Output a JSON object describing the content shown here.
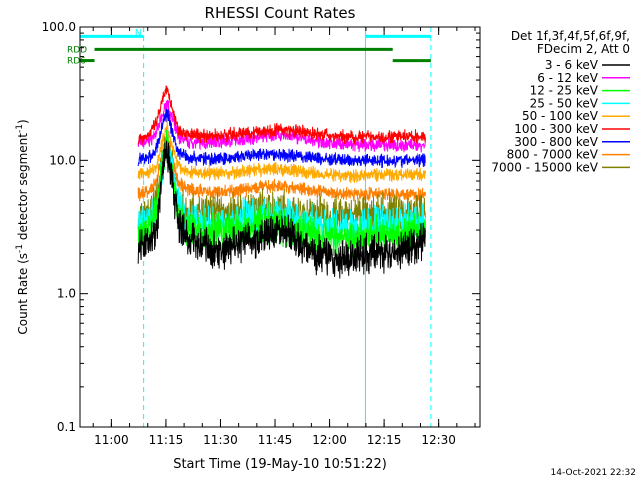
{
  "chart_data": {
    "type": "line",
    "title": "RHESSI Count Rates",
    "xlabel": "Start Time (19-May-10 10:51:22)",
    "ylabel_parts": [
      "Count Rate (s",
      "-1",
      " detector segment",
      "-1",
      ")"
    ],
    "yscale": "log",
    "ylim": [
      0.1,
      100
    ],
    "xlim_minutes_from_10:51:22": [
      0,
      110
    ],
    "x_ticks": [
      {
        "label": "11:00",
        "t": 8.63
      },
      {
        "label": "11:15",
        "t": 23.63
      },
      {
        "label": "11:30",
        "t": 38.63
      },
      {
        "label": "11:45",
        "t": 53.63
      },
      {
        "label": "12:00",
        "t": 68.63
      },
      {
        "label": "12:15",
        "t": 83.63
      },
      {
        "label": "12:30",
        "t": 98.63
      }
    ],
    "y_ticks": [
      {
        "label": "0.1",
        "v": 0.1
      },
      {
        "label": "1.0",
        "v": 1
      },
      {
        "label": "10.0",
        "v": 10
      },
      {
        "label": "100.0",
        "v": 100
      }
    ],
    "legend_header": [
      "Det 1f,3f,4f,5f,6f,9f,",
      "FDecim 2, Att 0"
    ],
    "data_start_minute": 16,
    "data_end_minute": 95,
    "flare_peak_minute": 24,
    "series": [
      {
        "name": "3 - 6 keV",
        "color": "#000000",
        "values": [
          [
            16,
            2.2
          ],
          [
            19,
            2.5
          ],
          [
            21,
            3.0
          ],
          [
            23,
            9.5
          ],
          [
            24,
            12.0
          ],
          [
            25,
            8.0
          ],
          [
            27,
            3.5
          ],
          [
            30,
            2.5
          ],
          [
            35,
            2.2
          ],
          [
            40,
            2.1
          ],
          [
            45,
            2.5
          ],
          [
            50,
            2.6
          ],
          [
            55,
            3.0
          ],
          [
            60,
            2.5
          ],
          [
            65,
            2.0
          ],
          [
            70,
            1.8
          ],
          [
            75,
            1.9
          ],
          [
            80,
            2.0
          ],
          [
            85,
            2.0
          ],
          [
            90,
            2.2
          ],
          [
            95,
            2.5
          ]
        ]
      },
      {
        "name": "6 - 12 keV",
        "color": "#ff00ff",
        "values": [
          [
            16,
            13.5
          ],
          [
            19,
            14.0
          ],
          [
            21,
            16.0
          ],
          [
            23,
            23.0
          ],
          [
            24,
            27.0
          ],
          [
            25,
            22.0
          ],
          [
            27,
            15.0
          ],
          [
            30,
            13.8
          ],
          [
            35,
            13.5
          ],
          [
            40,
            13.8
          ],
          [
            45,
            14.5
          ],
          [
            50,
            15.2
          ],
          [
            55,
            15.5
          ],
          [
            60,
            14.8
          ],
          [
            65,
            14.0
          ],
          [
            70,
            13.5
          ],
          [
            75,
            13.0
          ],
          [
            80,
            13.0
          ],
          [
            85,
            13.0
          ],
          [
            90,
            13.0
          ],
          [
            95,
            13.0
          ]
        ]
      },
      {
        "name": "12 - 25 keV",
        "color": "#00ff00",
        "values": [
          [
            16,
            2.6
          ],
          [
            19,
            3.0
          ],
          [
            21,
            4.0
          ],
          [
            23,
            11.0
          ],
          [
            24,
            13.0
          ],
          [
            25,
            9.0
          ],
          [
            27,
            4.0
          ],
          [
            30,
            3.0
          ],
          [
            35,
            2.9
          ],
          [
            40,
            2.9
          ],
          [
            45,
            3.1
          ],
          [
            50,
            3.3
          ],
          [
            55,
            3.3
          ],
          [
            60,
            3.0
          ],
          [
            65,
            2.8
          ],
          [
            70,
            2.6
          ],
          [
            75,
            2.6
          ],
          [
            80,
            2.7
          ],
          [
            85,
            2.8
          ],
          [
            90,
            2.9
          ],
          [
            95,
            3.0
          ]
        ]
      },
      {
        "name": "25 - 50 keV",
        "color": "#00ffff",
        "values": [
          [
            16,
            3.2
          ],
          [
            19,
            3.6
          ],
          [
            21,
            4.5
          ],
          [
            23,
            10.5
          ],
          [
            24,
            12.5
          ],
          [
            25,
            9.0
          ],
          [
            27,
            4.5
          ],
          [
            30,
            3.5
          ],
          [
            35,
            3.4
          ],
          [
            40,
            3.3
          ],
          [
            45,
            3.6
          ],
          [
            50,
            3.8
          ],
          [
            55,
            3.8
          ],
          [
            60,
            3.5
          ],
          [
            65,
            3.2
          ],
          [
            70,
            3.1
          ],
          [
            75,
            3.2
          ],
          [
            80,
            3.2
          ],
          [
            85,
            3.3
          ],
          [
            90,
            3.4
          ],
          [
            95,
            3.4
          ]
        ]
      },
      {
        "name": "50 - 100 keV",
        "color": "#ffaa00",
        "values": [
          [
            16,
            8.0
          ],
          [
            19,
            8.2
          ],
          [
            21,
            9.0
          ],
          [
            23,
            15.0
          ],
          [
            24,
            18.0
          ],
          [
            25,
            14.0
          ],
          [
            27,
            9.0
          ],
          [
            30,
            8.2
          ],
          [
            35,
            8.0
          ],
          [
            40,
            8.0
          ],
          [
            45,
            8.2
          ],
          [
            50,
            8.5
          ],
          [
            55,
            8.6
          ],
          [
            60,
            8.3
          ],
          [
            65,
            8.0
          ],
          [
            70,
            7.8
          ],
          [
            75,
            7.7
          ],
          [
            80,
            7.8
          ],
          [
            85,
            7.8
          ],
          [
            90,
            7.8
          ],
          [
            95,
            7.8
          ]
        ]
      },
      {
        "name": "100 - 300 keV",
        "color": "#ff0000",
        "values": [
          [
            16,
            14.5
          ],
          [
            19,
            15.5
          ],
          [
            21,
            19.0
          ],
          [
            23,
            30.0
          ],
          [
            24,
            34.0
          ],
          [
            25,
            27.0
          ],
          [
            27,
            17.0
          ],
          [
            30,
            15.5
          ],
          [
            35,
            15.2
          ],
          [
            40,
            15.5
          ],
          [
            45,
            16.0
          ],
          [
            50,
            16.5
          ],
          [
            55,
            17.0
          ],
          [
            60,
            16.3
          ],
          [
            65,
            15.8
          ],
          [
            70,
            15.2
          ],
          [
            75,
            15.0
          ],
          [
            80,
            15.0
          ],
          [
            85,
            15.0
          ],
          [
            90,
            15.0
          ],
          [
            95,
            15.0
          ]
        ]
      },
      {
        "name": "300 - 800 keV",
        "color": "#0000ff",
        "values": [
          [
            16,
            10.0
          ],
          [
            19,
            10.5
          ],
          [
            21,
            12.0
          ],
          [
            23,
            20.0
          ],
          [
            24,
            23.0
          ],
          [
            25,
            18.0
          ],
          [
            27,
            11.5
          ],
          [
            30,
            10.5
          ],
          [
            35,
            10.3
          ],
          [
            40,
            10.3
          ],
          [
            45,
            10.6
          ],
          [
            50,
            11.0
          ],
          [
            55,
            11.1
          ],
          [
            60,
            10.8
          ],
          [
            65,
            10.4
          ],
          [
            70,
            10.1
          ],
          [
            75,
            10.0
          ],
          [
            80,
            10.0
          ],
          [
            85,
            10.0
          ],
          [
            90,
            10.0
          ],
          [
            95,
            10.0
          ]
        ]
      },
      {
        "name": "800 - 7000 keV",
        "color": "#ff8000",
        "values": [
          [
            16,
            5.5
          ],
          [
            19,
            5.8
          ],
          [
            21,
            7.0
          ],
          [
            23,
            13.0
          ],
          [
            24,
            15.5
          ],
          [
            25,
            11.5
          ],
          [
            27,
            6.8
          ],
          [
            30,
            6.0
          ],
          [
            35,
            5.8
          ],
          [
            40,
            5.8
          ],
          [
            45,
            6.0
          ],
          [
            50,
            6.3
          ],
          [
            55,
            6.4
          ],
          [
            60,
            6.2
          ],
          [
            65,
            5.9
          ],
          [
            70,
            5.7
          ],
          [
            75,
            5.6
          ],
          [
            80,
            5.6
          ],
          [
            85,
            5.6
          ],
          [
            90,
            5.6
          ],
          [
            95,
            5.6
          ]
        ]
      },
      {
        "name": "7000 - 15000 keV",
        "color": "#808000",
        "values": [
          [
            16,
            3.6
          ],
          [
            19,
            4.0
          ],
          [
            21,
            5.0
          ],
          [
            23,
            11.0
          ],
          [
            24,
            13.5
          ],
          [
            25,
            9.5
          ],
          [
            27,
            5.0
          ],
          [
            30,
            4.1
          ],
          [
            35,
            4.0
          ],
          [
            40,
            4.0
          ],
          [
            45,
            4.1
          ],
          [
            50,
            4.3
          ],
          [
            55,
            4.3
          ],
          [
            60,
            4.1
          ],
          [
            65,
            4.0
          ],
          [
            70,
            3.9
          ],
          [
            75,
            3.9
          ],
          [
            80,
            3.9
          ],
          [
            85,
            4.0
          ],
          [
            90,
            4.0
          ],
          [
            95,
            4.0
          ]
        ]
      }
    ],
    "vlines": [
      {
        "t": 0,
        "style": "solid"
      },
      {
        "t": 17.5,
        "style": "dashed"
      },
      {
        "t": 78.5,
        "style": "solid"
      },
      {
        "t": 96.5,
        "style": "dashed"
      }
    ],
    "bars": [
      {
        "label": "N",
        "color": "#00ffff",
        "value": 85,
        "segments": [
          [
            0,
            17.5
          ],
          [
            78.5,
            96.5
          ]
        ]
      },
      {
        "label": "RDD",
        "color": "#008000",
        "value": 68,
        "segments": [
          [
            4,
            86
          ]
        ]
      },
      {
        "label": "RD6",
        "color": "#008000",
        "value": 56,
        "segments": [
          [
            0,
            4
          ],
          [
            86,
            96.5
          ]
        ]
      }
    ],
    "timestamp": "14-Oct-2021 22:32",
    "axis_color": "#000000",
    "marker_color": "#00ffff"
  }
}
